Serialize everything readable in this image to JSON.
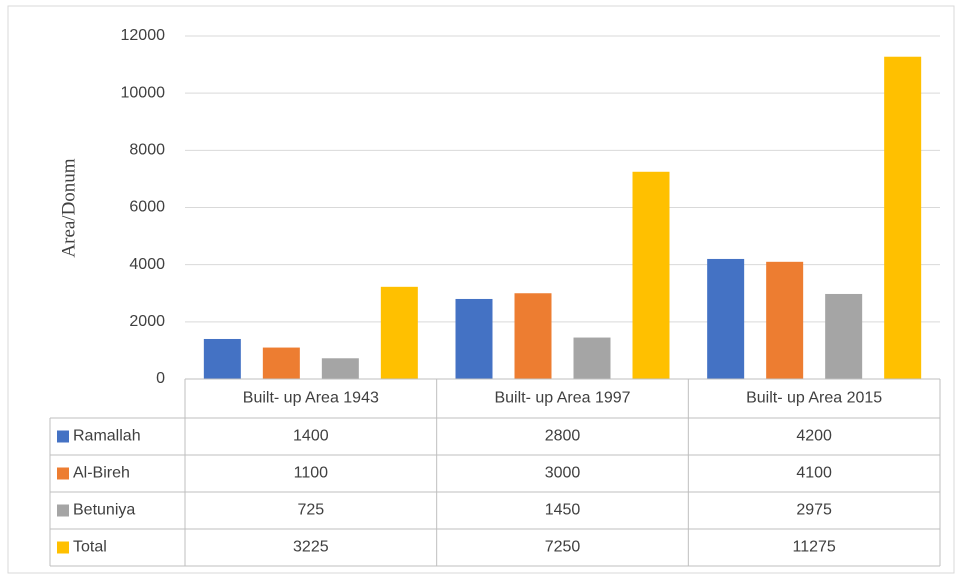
{
  "chart_data": {
    "type": "bar",
    "y_label": "Area/Donum",
    "categories": [
      "Built- up Area 1943",
      "Built- up Area 1997",
      "Built- up Area 2015"
    ],
    "series": [
      {
        "name": "Ramallah",
        "color": "#4472c4",
        "values": [
          1400,
          2800,
          4200
        ]
      },
      {
        "name": "Al-Bireh",
        "color": "#ed7d31",
        "values": [
          1100,
          3000,
          4100
        ]
      },
      {
        "name": "Betuniya",
        "color": "#a5a5a5",
        "values": [
          725,
          1450,
          2975
        ]
      },
      {
        "name": "Total",
        "color": "#ffc000",
        "values": [
          3225,
          7250,
          11275
        ]
      }
    ],
    "ylim": [
      0,
      12000
    ],
    "yticks": [
      0,
      2000,
      4000,
      6000,
      8000,
      10000,
      12000
    ],
    "grid": true
  }
}
